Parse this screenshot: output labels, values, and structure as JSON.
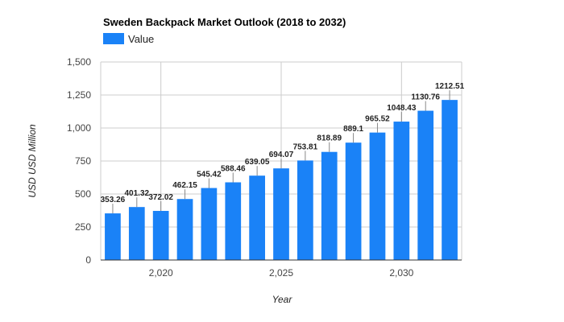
{
  "chart_data": {
    "type": "bar",
    "title": "Sweden Backpack Market Outlook (2018 to 2032)",
    "xlabel": "Year",
    "ylabel": "USD USD Million",
    "series": [
      {
        "name": "Value",
        "color": "#1a82f7",
        "x": [
          2018,
          2019,
          2020,
          2021,
          2022,
          2023,
          2024,
          2025,
          2026,
          2027,
          2028,
          2029,
          2030,
          2031,
          2032
        ],
        "values": [
          353.26,
          401.32,
          372.02,
          462.15,
          545.42,
          588.46,
          639.05,
          694.07,
          753.81,
          818.89,
          889.1,
          965.52,
          1048.43,
          1130.76,
          1212.51
        ],
        "labels": [
          "353.26",
          "401.32",
          "372.02",
          "462.15",
          "545.42",
          "588.46",
          "639.05",
          "694.07",
          "753.81",
          "818.89",
          "889.1",
          "965.52",
          "1048.43",
          "1130.76",
          "1212.51"
        ]
      }
    ],
    "ylim": [
      0,
      1500
    ],
    "y_ticks": [
      0,
      250,
      500,
      750,
      1000,
      1250,
      1500
    ],
    "y_tick_labels": [
      "0",
      "250",
      "500",
      "750",
      "1,000",
      "1,250",
      "1,500"
    ],
    "x_ticks": [
      2020,
      2025,
      2030
    ],
    "x_tick_labels": [
      "2,020",
      "2,025",
      "2,030"
    ],
    "grid": true,
    "legend": "top-left"
  }
}
